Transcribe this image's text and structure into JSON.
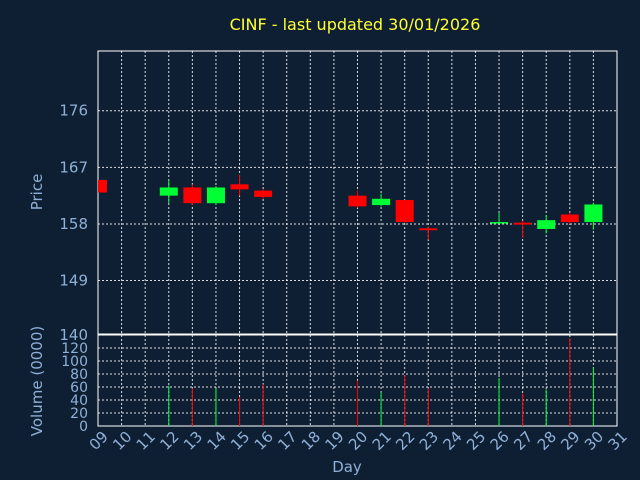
{
  "chart_data": {
    "type": "candlestick",
    "title": "CINF - last updated 30/01/2026",
    "xlabel": "Day",
    "price_ylabel": "Price",
    "volume_ylabel": "Volume (0000)",
    "price_ticks": [
      149,
      158,
      167,
      176
    ],
    "volume_ticks": [
      0,
      20,
      40,
      60,
      80,
      100,
      120
    ],
    "volume_top_label": "140",
    "x_labels": [
      "09",
      "10",
      "11",
      "12",
      "13",
      "14",
      "15",
      "16",
      "17",
      "18",
      "19",
      "20",
      "21",
      "22",
      "23",
      "24",
      "25",
      "26",
      "27",
      "28",
      "29",
      "30",
      "31"
    ],
    "price_ylim": [
      140.5,
      185.5
    ],
    "volume_ylim": [
      0,
      140
    ],
    "candles": [
      {
        "day": "09",
        "open": 165.0,
        "close": 163.0,
        "high": 165.0,
        "low": 163.0,
        "volume": 0
      },
      {
        "day": "12",
        "open": 162.5,
        "close": 163.8,
        "high": 165.0,
        "low": 161.3,
        "volume": 62
      },
      {
        "day": "13",
        "open": 163.8,
        "close": 161.3,
        "high": 164.3,
        "low": 161.0,
        "volume": 58
      },
      {
        "day": "14",
        "open": 161.3,
        "close": 163.8,
        "high": 164.0,
        "low": 161.0,
        "volume": 58
      },
      {
        "day": "15",
        "open": 164.3,
        "close": 163.5,
        "high": 165.8,
        "low": 162.5,
        "volume": 45
      },
      {
        "day": "16",
        "open": 163.3,
        "close": 162.3,
        "high": 163.5,
        "low": 162.0,
        "volume": 64
      },
      {
        "day": "20",
        "open": 162.5,
        "close": 160.8,
        "high": 163.3,
        "low": 160.6,
        "volume": 70
      },
      {
        "day": "21",
        "open": 161.0,
        "close": 162.0,
        "high": 162.8,
        "low": 160.8,
        "volume": 52
      },
      {
        "day": "22",
        "open": 161.8,
        "close": 158.3,
        "high": 161.8,
        "low": 158.2,
        "volume": 78
      },
      {
        "day": "23",
        "open": 157.3,
        "close": 157.0,
        "high": 157.6,
        "low": 155.5,
        "volume": 58
      },
      {
        "day": "26",
        "open": 158.1,
        "close": 158.3,
        "high": 159.8,
        "low": 158.0,
        "volume": 74
      },
      {
        "day": "27",
        "open": 158.2,
        "close": 157.9,
        "high": 158.5,
        "low": 155.8,
        "volume": 50
      },
      {
        "day": "28",
        "open": 157.2,
        "close": 158.6,
        "high": 159.4,
        "low": 156.5,
        "volume": 56
      },
      {
        "day": "29",
        "open": 159.5,
        "close": 158.3,
        "high": 159.8,
        "low": 158.0,
        "volume": 135
      },
      {
        "day": "30",
        "open": 158.3,
        "close": 161.1,
        "high": 161.4,
        "low": 157.1,
        "volume": 90
      }
    ],
    "colors": {
      "up": "#00ff33",
      "down": "#ff0000",
      "background": "#0f1f33",
      "grid": "#ffffff",
      "title": "#ffff33",
      "axis_text": "#8fb0d8"
    }
  }
}
